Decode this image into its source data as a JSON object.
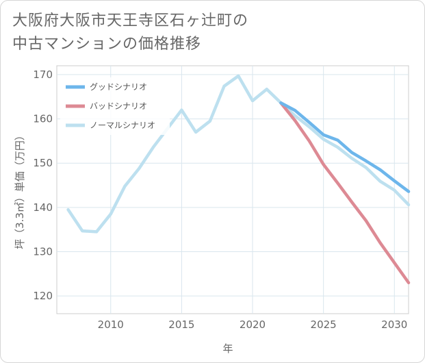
{
  "title_lines": [
    "大阪府大阪市天王寺区石ヶ辻町の",
    "中古マンションの価格推移"
  ],
  "chart_data": {
    "type": "line",
    "title": "大阪府大阪市天王寺区石ヶ辻町の中古マンションの価格推移",
    "xlabel": "年",
    "ylabel": "坪（3.3㎡）単価（万円）",
    "xlim": [
      2006.2,
      2031
    ],
    "ylim": [
      116,
      172
    ],
    "xticks": [
      2010,
      2015,
      2020,
      2025,
      2030
    ],
    "yticks": [
      120,
      130,
      140,
      150,
      160,
      170
    ],
    "grid": true,
    "legend_position": "top-left",
    "series": [
      {
        "name": "グッドシナリオ",
        "color": "#6db6eb",
        "x": [
          2022,
          2023,
          2024,
          2025,
          2026,
          2027,
          2028,
          2029,
          2030,
          2031
        ],
        "values": [
          163.6,
          161.9,
          159.2,
          156.4,
          155.2,
          152.4,
          150.5,
          148.5,
          146.0,
          143.6
        ]
      },
      {
        "name": "バッドシナリオ",
        "color": "#dd8a94",
        "x": [
          2022,
          2023,
          2024,
          2025,
          2026,
          2027,
          2028,
          2029,
          2030,
          2031
        ],
        "values": [
          163.6,
          159.6,
          155.0,
          149.7,
          145.5,
          141.2,
          137.0,
          132.0,
          127.5,
          123.0
        ]
      },
      {
        "name": "ノーマルシナリオ",
        "color": "#bde0ef",
        "x": [
          2007,
          2008,
          2009,
          2010,
          2011,
          2012,
          2013,
          2014,
          2015,
          2016,
          2017,
          2018,
          2019,
          2020,
          2021,
          2022,
          2023,
          2024,
          2025,
          2026,
          2027,
          2028,
          2029,
          2030,
          2031
        ],
        "values": [
          139.5,
          134.7,
          134.5,
          138.5,
          144.8,
          148.8,
          153.6,
          157.8,
          162.0,
          157.0,
          159.5,
          167.4,
          169.7,
          164.1,
          166.7,
          163.6,
          160.7,
          158.2,
          155.4,
          153.6,
          151.1,
          149.0,
          145.9,
          143.9,
          140.6
        ]
      }
    ]
  }
}
